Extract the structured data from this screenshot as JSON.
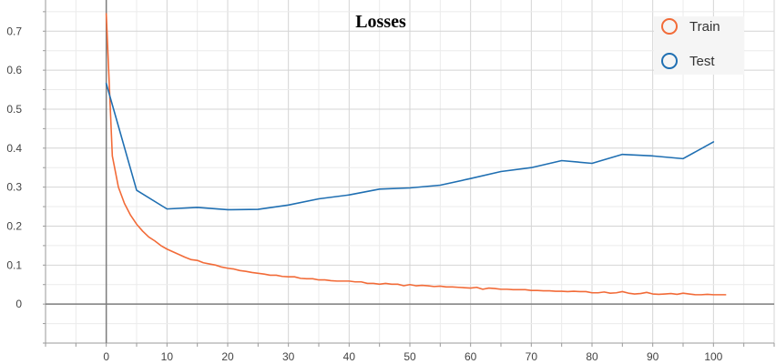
{
  "chart_data": {
    "type": "line",
    "title": "Losses",
    "xlabel": "",
    "ylabel": "",
    "xlim": [
      -10,
      110
    ],
    "ylim": [
      -0.1,
      0.78
    ],
    "x_ticks": [
      0,
      10,
      20,
      30,
      40,
      50,
      60,
      70,
      80,
      90,
      100
    ],
    "y_ticks": [
      0,
      0.1,
      0.2,
      0.3,
      0.4,
      0.5,
      0.6,
      0.7
    ],
    "x_tick_labels": [
      "0",
      "10",
      "20",
      "30",
      "40",
      "50",
      "60",
      "70",
      "80",
      "90",
      "100"
    ],
    "y_tick_labels": [
      "0",
      "0.1",
      "0.2",
      "0.3",
      "0.4",
      "0.5",
      "0.6",
      "0.7"
    ],
    "grid": true,
    "legend_position": "top-right",
    "series": [
      {
        "name": "Train",
        "color": "#f26b38",
        "points": [
          [
            0,
            0.745
          ],
          [
            1,
            0.38
          ],
          [
            2,
            0.3
          ],
          [
            3,
            0.258
          ],
          [
            4,
            0.228
          ],
          [
            5,
            0.205
          ],
          [
            6,
            0.187
          ],
          [
            7,
            0.172
          ],
          [
            8,
            0.162
          ],
          [
            9,
            0.15
          ],
          [
            10,
            0.141
          ],
          [
            11,
            0.134
          ],
          [
            12,
            0.127
          ],
          [
            13,
            0.12
          ],
          [
            14,
            0.114
          ],
          [
            15,
            0.112
          ],
          [
            16,
            0.106
          ],
          [
            17,
            0.103
          ],
          [
            18,
            0.1
          ],
          [
            19,
            0.095
          ],
          [
            20,
            0.092
          ],
          [
            21,
            0.09
          ],
          [
            22,
            0.086
          ],
          [
            23,
            0.084
          ],
          [
            24,
            0.081
          ],
          [
            25,
            0.079
          ],
          [
            26,
            0.077
          ],
          [
            27,
            0.074
          ],
          [
            28,
            0.074
          ],
          [
            29,
            0.071
          ],
          [
            30,
            0.07
          ],
          [
            31,
            0.07
          ],
          [
            32,
            0.066
          ],
          [
            33,
            0.065
          ],
          [
            34,
            0.065
          ],
          [
            35,
            0.062
          ],
          [
            36,
            0.062
          ],
          [
            37,
            0.06
          ],
          [
            38,
            0.059
          ],
          [
            39,
            0.059
          ],
          [
            40,
            0.059
          ],
          [
            41,
            0.057
          ],
          [
            42,
            0.057
          ],
          [
            43,
            0.053
          ],
          [
            44,
            0.053
          ],
          [
            45,
            0.051
          ],
          [
            46,
            0.053
          ],
          [
            47,
            0.051
          ],
          [
            48,
            0.051
          ],
          [
            49,
            0.047
          ],
          [
            50,
            0.05
          ],
          [
            51,
            0.047
          ],
          [
            52,
            0.048
          ],
          [
            53,
            0.047
          ],
          [
            54,
            0.045
          ],
          [
            55,
            0.046
          ],
          [
            56,
            0.044
          ],
          [
            57,
            0.044
          ],
          [
            58,
            0.043
          ],
          [
            59,
            0.042
          ],
          [
            60,
            0.041
          ],
          [
            61,
            0.043
          ],
          [
            62,
            0.038
          ],
          [
            63,
            0.041
          ],
          [
            64,
            0.04
          ],
          [
            65,
            0.038
          ],
          [
            66,
            0.038
          ],
          [
            67,
            0.037
          ],
          [
            68,
            0.037
          ],
          [
            69,
            0.037
          ],
          [
            70,
            0.035
          ],
          [
            71,
            0.035
          ],
          [
            72,
            0.034
          ],
          [
            73,
            0.034
          ],
          [
            74,
            0.033
          ],
          [
            75,
            0.033
          ],
          [
            76,
            0.032
          ],
          [
            77,
            0.033
          ],
          [
            78,
            0.032
          ],
          [
            79,
            0.032
          ],
          [
            80,
            0.029
          ],
          [
            81,
            0.029
          ],
          [
            82,
            0.031
          ],
          [
            83,
            0.028
          ],
          [
            84,
            0.029
          ],
          [
            85,
            0.032
          ],
          [
            86,
            0.028
          ],
          [
            87,
            0.026
          ],
          [
            88,
            0.027
          ],
          [
            89,
            0.03
          ],
          [
            90,
            0.026
          ],
          [
            91,
            0.025
          ],
          [
            92,
            0.026
          ],
          [
            93,
            0.027
          ],
          [
            94,
            0.025
          ],
          [
            95,
            0.028
          ],
          [
            96,
            0.026
          ],
          [
            97,
            0.024
          ],
          [
            98,
            0.024
          ],
          [
            99,
            0.025
          ],
          [
            100,
            0.024
          ],
          [
            101,
            0.024
          ],
          [
            102,
            0.024
          ]
        ]
      },
      {
        "name": "Test",
        "color": "#1f6fb2",
        "points": [
          [
            0,
            0.566
          ],
          [
            5,
            0.292
          ],
          [
            10,
            0.244
          ],
          [
            15,
            0.248
          ],
          [
            20,
            0.242
          ],
          [
            25,
            0.243
          ],
          [
            30,
            0.254
          ],
          [
            35,
            0.27
          ],
          [
            40,
            0.28
          ],
          [
            45,
            0.295
          ],
          [
            50,
            0.298
          ],
          [
            55,
            0.305
          ],
          [
            60,
            0.322
          ],
          [
            65,
            0.34
          ],
          [
            70,
            0.35
          ],
          [
            75,
            0.368
          ],
          [
            80,
            0.361
          ],
          [
            85,
            0.384
          ],
          [
            90,
            0.38
          ],
          [
            95,
            0.373
          ],
          [
            100,
            0.416
          ]
        ]
      }
    ]
  }
}
